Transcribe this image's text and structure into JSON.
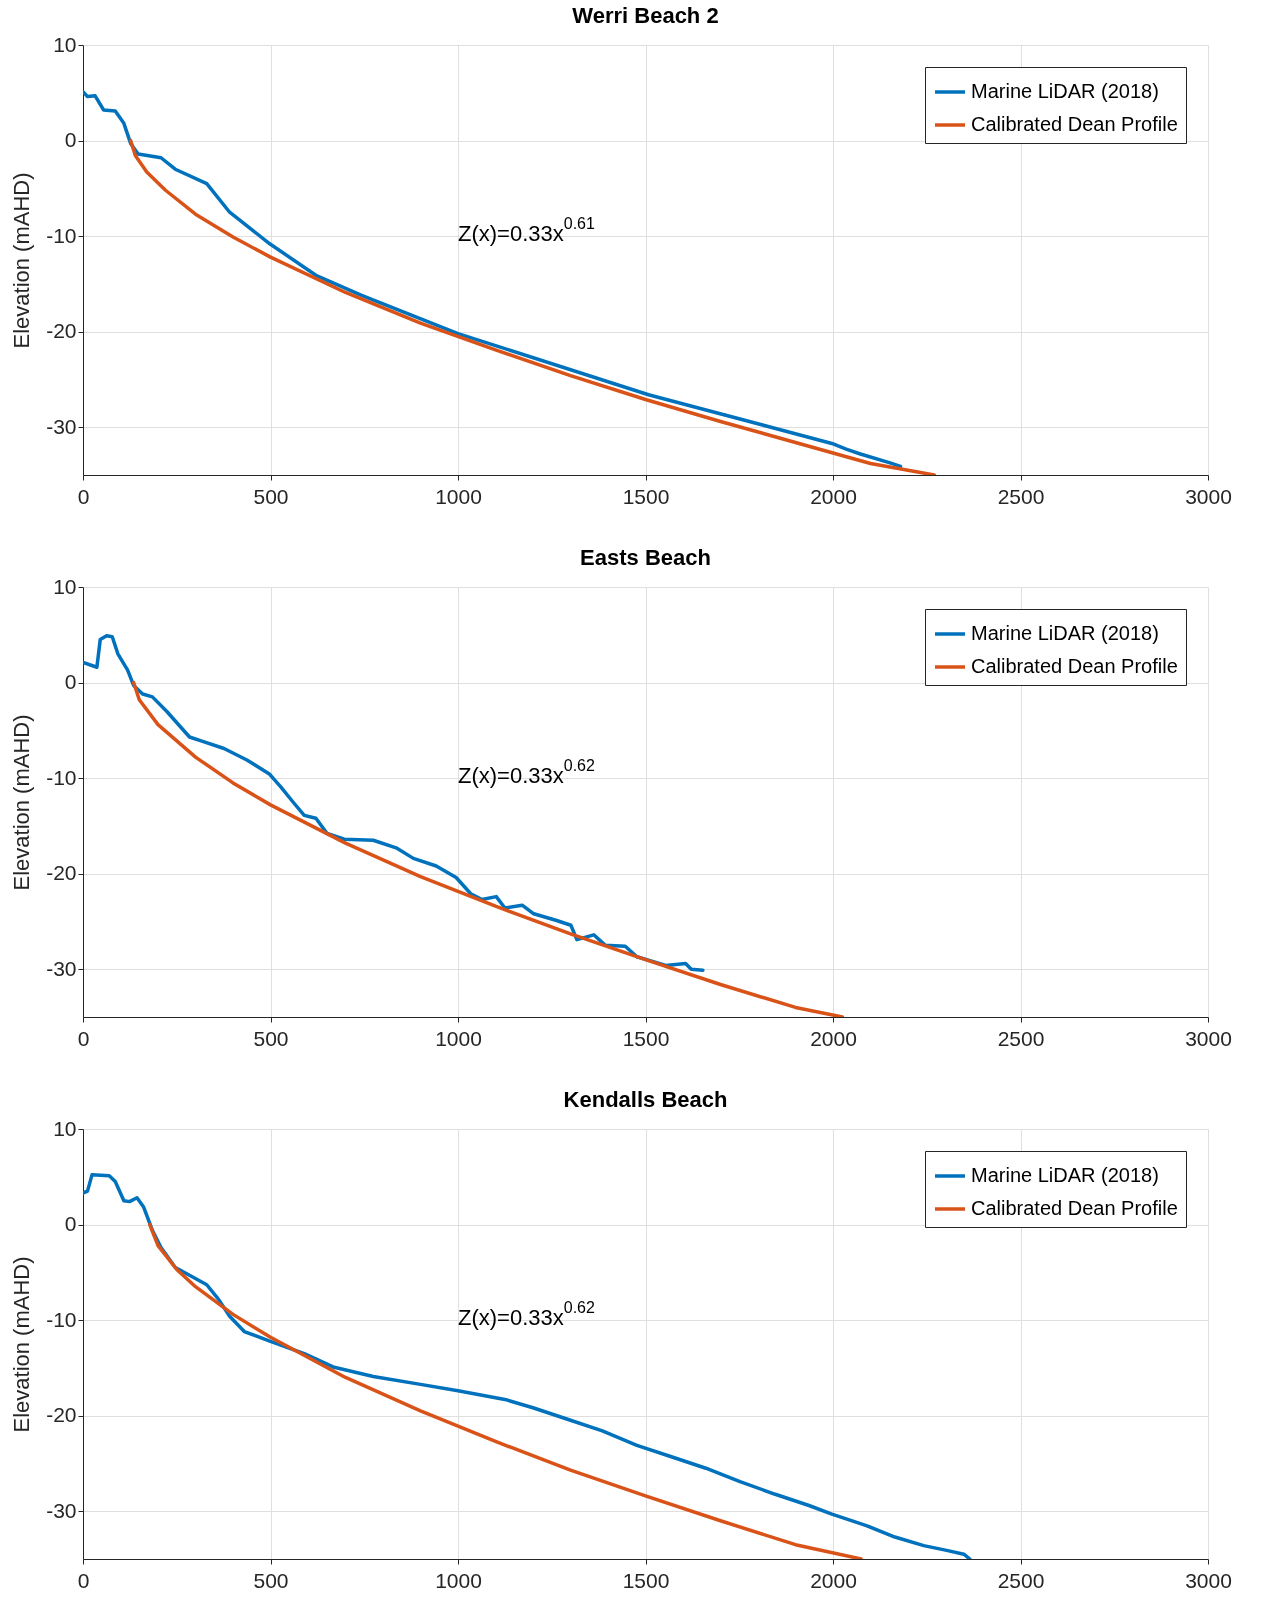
{
  "chart_data": [
    {
      "type": "line",
      "title": "Werri Beach 2",
      "ylabel": "Elevation (mAHD)",
      "annotations": [
        "Z(x)=0.33x$^{0.61}$"
      ],
      "xlim": [
        0,
        3000
      ],
      "xticks": [
        0,
        500,
        1000,
        1500,
        2000,
        2500,
        3000
      ],
      "ylim": [
        -35,
        10
      ],
      "yticks": [
        -30,
        -20,
        -10,
        0,
        10
      ],
      "grid": true,
      "legend": "top right",
      "line_style": "solid",
      "marker": "none",
      "series": [
        {
          "name": "Marine LiDAR (2018)",
          "color": "#0072bd",
          "x": [
            0,
            12,
            32,
            55,
            86,
            109,
            127,
            147,
            208,
            246,
            330,
            391,
            498,
            621,
            743,
            1000,
            1508,
            1997,
            2035,
            2073,
            2150,
            2180
          ],
          "values": [
            5.1,
            4.6,
            4.7,
            3.2,
            3.1,
            1.8,
            -0.3,
            -1.4,
            -1.8,
            -3.0,
            -4.5,
            -7.5,
            -10.8,
            -14.1,
            -16.2,
            -20.2,
            -26.6,
            -31.7,
            -32.3,
            -32.8,
            -33.7,
            -34.1
          ]
        },
        {
          "name": "Calibrated Dean Profile",
          "color": "#d95319",
          "x": [
            127,
            140,
            170,
            220,
            300,
            400,
            500,
            700,
            900,
            1100,
            1300,
            1500,
            1700,
            1900,
            2100,
            2270
          ],
          "values": [
            0,
            -1.6,
            -3.3,
            -5.2,
            -7.7,
            -10.1,
            -12.2,
            -15.9,
            -19.1,
            -21.9,
            -24.6,
            -27.1,
            -29.4,
            -31.6,
            -33.8,
            -35
          ]
        }
      ]
    },
    {
      "type": "line",
      "title": "Easts Beach",
      "ylabel": "Elevation (mAHD)",
      "annotations": [
        "Z(x)=0.33x$^{0.62}$"
      ],
      "xlim": [
        0,
        3000
      ],
      "xticks": [
        0,
        500,
        1000,
        1500,
        2000,
        2500,
        3000
      ],
      "ylim": [
        -35,
        10
      ],
      "yticks": [
        -30,
        -20,
        -10,
        0,
        10
      ],
      "grid": true,
      "legend": "top right",
      "line_style": "solid",
      "marker": "none",
      "series": [
        {
          "name": "Marine LiDAR (2018)",
          "color": "#0072bd",
          "x": [
            0,
            37,
            46,
            63,
            78,
            93,
            119,
            135,
            159,
            185,
            223,
            284,
            315,
            376,
            437,
            498,
            529,
            560,
            590,
            621,
            651,
            697,
            774,
            835,
            881,
            942,
            995,
            1034,
            1064,
            1102,
            1125,
            1171,
            1202,
            1263,
            1301,
            1317,
            1362,
            1393,
            1446,
            1477,
            1554,
            1607,
            1622,
            1653
          ],
          "values": [
            2.1,
            1.6,
            4.5,
            4.9,
            4.8,
            3.0,
            1.3,
            -0.3,
            -1.2,
            -1.5,
            -3.0,
            -5.7,
            -6.1,
            -6.9,
            -8.1,
            -9.6,
            -11.0,
            -12.5,
            -13.9,
            -14.2,
            -15.8,
            -16.4,
            -16.5,
            -17.3,
            -18.4,
            -19.2,
            -20.4,
            -22.1,
            -22.7,
            -22.4,
            -23.6,
            -23.3,
            -24.2,
            -24.9,
            -25.4,
            -26.9,
            -26.4,
            -27.5,
            -27.6,
            -28.7,
            -29.6,
            -29.4,
            -30.0,
            -30.1
          ]
        },
        {
          "name": "Calibrated Dean Profile",
          "color": "#d95319",
          "x": [
            135,
            150,
            200,
            300,
            400,
            500,
            700,
            900,
            1100,
            1300,
            1500,
            1700,
            1900,
            2025
          ],
          "values": [
            0,
            -1.8,
            -4.4,
            -7.8,
            -10.5,
            -12.8,
            -16.8,
            -20.3,
            -23.4,
            -26.3,
            -29.0,
            -31.6,
            -34.0,
            -35
          ]
        }
      ]
    },
    {
      "type": "line",
      "title": "Kendalls Beach",
      "ylabel": "Elevation (mAHD)",
      "annotations": [
        "Z(x)=0.33x$^{0.62}$"
      ],
      "xlim": [
        0,
        3000
      ],
      "xticks": [
        0,
        500,
        1000,
        1500,
        2000,
        2500,
        3000
      ],
      "ylim": [
        -35,
        10
      ],
      "yticks": [
        -30,
        -20,
        -10,
        0,
        10
      ],
      "grid": true,
      "legend": "top right",
      "line_style": "solid",
      "marker": "none",
      "series": [
        {
          "name": "Marine LiDAR (2018)",
          "color": "#0072bd",
          "x": [
            0,
            12,
            24,
            70,
            86,
            109,
            124,
            144,
            162,
            185,
            208,
            246,
            284,
            330,
            361,
            391,
            430,
            498,
            590,
            667,
            774,
            896,
            1000,
            1125,
            1202,
            1294,
            1385,
            1477,
            1569,
            1661,
            1752,
            1844,
            1936,
            1997,
            2089,
            2165,
            2242,
            2303,
            2349,
            2365
          ],
          "values": [
            3.3,
            3.5,
            5.2,
            5.1,
            4.5,
            2.5,
            2.4,
            2.8,
            1.8,
            -0.6,
            -2.4,
            -4.5,
            -5.3,
            -6.3,
            -7.8,
            -9.6,
            -11.2,
            -12.2,
            -13.5,
            -14.9,
            -15.9,
            -16.7,
            -17.4,
            -18.3,
            -19.2,
            -20.4,
            -21.6,
            -23.1,
            -24.3,
            -25.5,
            -26.9,
            -28.2,
            -29.4,
            -30.3,
            -31.5,
            -32.7,
            -33.6,
            -34.1,
            -34.5,
            -35
          ]
        },
        {
          "name": "Calibrated Dean Profile",
          "color": "#d95319",
          "x": [
            178,
            200,
            250,
            300,
            400,
            500,
            700,
            900,
            1100,
            1300,
            1500,
            1700,
            1900,
            2075
          ],
          "values": [
            0,
            -2.2,
            -4.7,
            -6.5,
            -9.4,
            -11.8,
            -16.0,
            -19.5,
            -22.7,
            -25.7,
            -28.4,
            -31.0,
            -33.5,
            -35
          ]
        }
      ]
    }
  ]
}
